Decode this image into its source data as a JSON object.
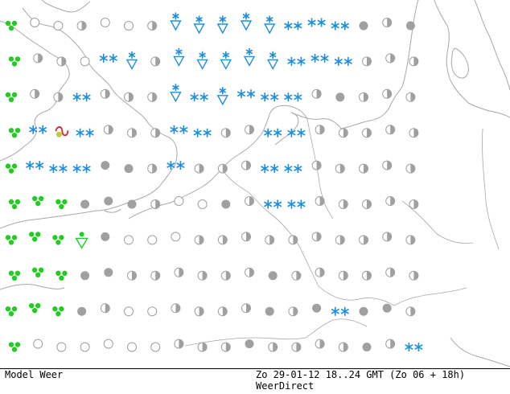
{
  "footer": {
    "model_label": "Model Weer",
    "time_label": "Zo 29-01-12 18..24 GMT (Zo 06 + 18h)",
    "source_label": "WeerDirect"
  },
  "colors": {
    "coast": "#a8a8a8",
    "snow": "#1a8fe0",
    "rain": "#22cc22",
    "cloud": "#a0a0a0",
    "thunder": "#dd2222"
  },
  "symbol_legend": {
    "clear": "clear-circle",
    "half": "partly-cloudy-circle",
    "overcast": "overcast-dot",
    "snow": "snow-asterisks",
    "snow_shower": "snow-shower-triangle",
    "rain": "rain-drops",
    "rain_shower": "rain-shower-triangle",
    "thunder": "thunder-symbol"
  },
  "grid_rows": [
    [
      "rain",
      "clear",
      "clear",
      "half",
      "clear",
      "clear",
      "half",
      "snow_shower",
      "snow_shower",
      "snow_shower",
      "snow_shower",
      "snow_shower",
      "snow",
      "snow",
      "snow",
      "overcast",
      "half",
      "overcast"
    ],
    [
      "rain",
      "half",
      "half",
      "clear",
      "snow",
      "snow_shower",
      "half",
      "snow_shower",
      "snow_shower",
      "snow_shower",
      "snow_shower",
      "snow_shower",
      "snow",
      "snow",
      "snow",
      "half",
      "half",
      "half"
    ],
    [
      "rain",
      "half",
      "half",
      "snow",
      "half",
      "half",
      "half",
      "snow_shower",
      "snow",
      "snow_shower",
      "snow",
      "snow",
      "snow",
      "half",
      "overcast",
      "half",
      "half",
      "half"
    ],
    [
      "rain",
      "snow",
      "thunder",
      "snow",
      "half",
      "half",
      "half",
      "snow",
      "snow",
      "half",
      "half",
      "snow",
      "snow",
      "half",
      "half",
      "half",
      "half",
      "half"
    ],
    [
      "rain",
      "snow",
      "snow",
      "snow",
      "overcast",
      "overcast",
      "half",
      "snow",
      "half",
      "half",
      "half",
      "snow",
      "snow",
      "half",
      "half",
      "half",
      "half",
      "half"
    ],
    [
      "rain",
      "rain",
      "rain",
      "overcast",
      "overcast",
      "overcast",
      "half",
      "clear",
      "clear",
      "overcast",
      "half",
      "snow",
      "snow",
      "half",
      "half",
      "half",
      "half",
      "half"
    ],
    [
      "rain",
      "rain",
      "rain",
      "rain_shower",
      "overcast",
      "clear",
      "clear",
      "clear",
      "half",
      "half",
      "half",
      "half",
      "half",
      "half",
      "half",
      "half",
      "half",
      "half"
    ],
    [
      "rain",
      "rain",
      "rain",
      "overcast",
      "overcast",
      "half",
      "half",
      "half",
      "half",
      "half",
      "half",
      "overcast",
      "half",
      "half",
      "half",
      "half",
      "half",
      "half"
    ],
    [
      "rain",
      "rain",
      "rain",
      "overcast",
      "half",
      "clear",
      "clear",
      "half",
      "half",
      "half",
      "half",
      "overcast",
      "half",
      "overcast",
      "snow",
      "overcast",
      "overcast",
      "half"
    ],
    [
      "rain",
      "clear",
      "clear",
      "clear",
      "clear",
      "clear",
      "clear",
      "half",
      "half",
      "half",
      "overcast",
      "half",
      "half",
      "half",
      "half",
      "overcast",
      "half",
      "snow"
    ]
  ]
}
